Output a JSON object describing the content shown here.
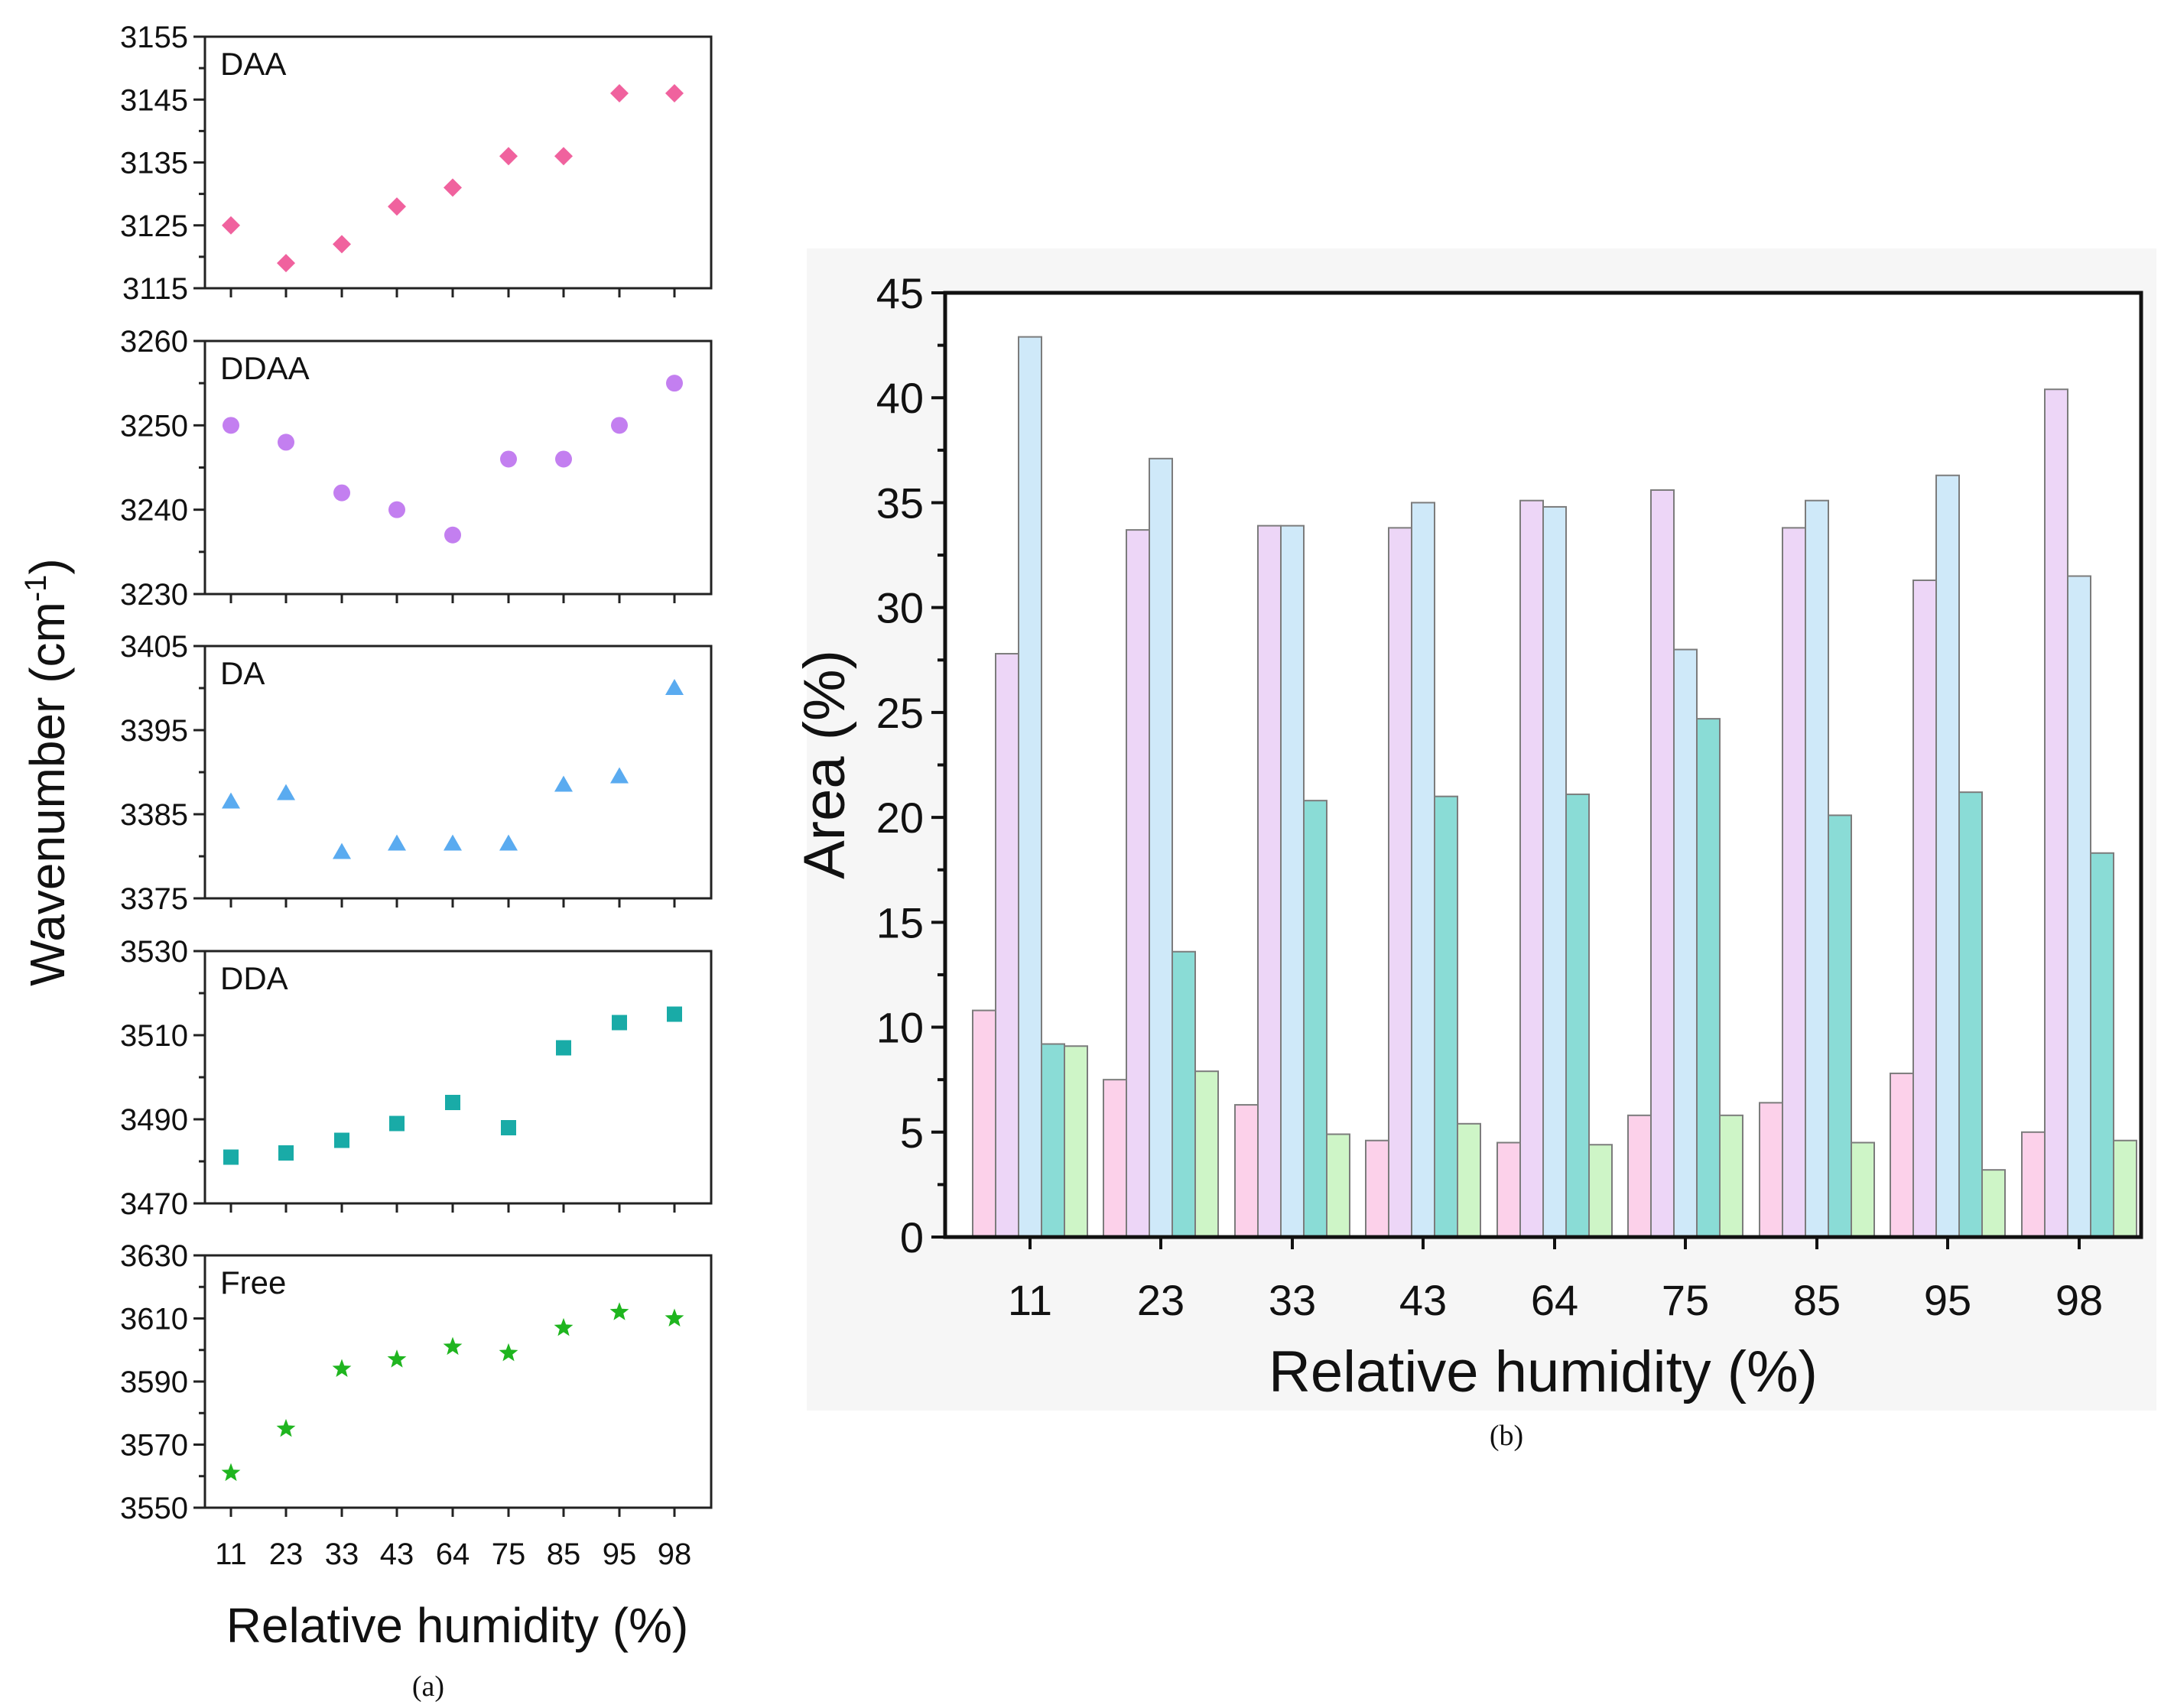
{
  "figure": {
    "caption_a": "(a)",
    "caption_b": "(b)"
  },
  "colors": {
    "DAA": "#f0629e",
    "DDAA": "#c37ff0",
    "DA": "#5aabf0",
    "DDA": "#19aba7",
    "Free": "#1fb51f",
    "bar_pink": "#fcd1ea",
    "bar_lavender": "#edd6f7",
    "bar_lightblue": "#cfe9f9",
    "bar_teal": "#8adcd6",
    "bar_lightgreen": "#cef5c7"
  },
  "chart_data": [
    {
      "id": "a",
      "type": "scatter",
      "categories": [
        "11",
        "23",
        "33",
        "43",
        "64",
        "75",
        "85",
        "95",
        "98"
      ],
      "xlabel": "Relative humidity (%)",
      "ylabel_main": "Wavenumber (cm",
      "ylabel_sup": "-1",
      "ylabel_close": ")",
      "panels": [
        {
          "name": "DAA",
          "marker": "diamond",
          "ylim": [
            3115,
            3155
          ],
          "ticks": [
            3115,
            3125,
            3135,
            3145,
            3155
          ],
          "values": [
            3125,
            3119,
            3122,
            3128,
            3131,
            3136,
            3136,
            3146,
            3146
          ]
        },
        {
          "name": "DDAA",
          "marker": "circle",
          "ylim": [
            3230,
            3260
          ],
          "ticks": [
            3230,
            3240,
            3250,
            3260
          ],
          "values": [
            3250,
            3248,
            3242,
            3240,
            3237,
            3246,
            3246,
            3250,
            3255
          ]
        },
        {
          "name": "DA",
          "marker": "triangle",
          "ylim": [
            3375,
            3405
          ],
          "ticks": [
            3375,
            3385,
            3395,
            3405
          ],
          "values": [
            3386.5,
            3387.5,
            3380.5,
            3381.5,
            3381.5,
            3381.5,
            3388.5,
            3389.5,
            3400
          ]
        },
        {
          "name": "DDA",
          "marker": "square",
          "ylim": [
            3470,
            3530
          ],
          "ticks": [
            3470,
            3490,
            3510,
            3530
          ],
          "values": [
            3481,
            3482,
            3485,
            3489,
            3494,
            3488,
            3507,
            3513,
            3515
          ]
        },
        {
          "name": "Free",
          "marker": "star",
          "ylim": [
            3550,
            3630
          ],
          "ticks": [
            3550,
            3570,
            3590,
            3610,
            3630
          ],
          "values": [
            3561,
            3575,
            3594,
            3597,
            3601,
            3599,
            3607,
            3612,
            3610
          ]
        }
      ]
    },
    {
      "id": "b",
      "type": "bar",
      "categories": [
        "11",
        "23",
        "33",
        "43",
        "64",
        "75",
        "85",
        "95",
        "98"
      ],
      "xlabel": "Relative humidity (%)",
      "ylabel": "Area (%)",
      "ylim": [
        0,
        45
      ],
      "ticks": [
        0,
        5,
        10,
        15,
        20,
        25,
        30,
        35,
        40,
        45
      ],
      "series": [
        {
          "name": "DAA",
          "color_key": "bar_pink",
          "values": [
            10.8,
            7.5,
            6.3,
            4.6,
            4.5,
            5.8,
            6.4,
            7.8,
            5.0
          ]
        },
        {
          "name": "DDAA",
          "color_key": "bar_lavender",
          "values": [
            27.8,
            33.7,
            33.9,
            33.8,
            35.1,
            35.6,
            33.8,
            31.3,
            40.4
          ]
        },
        {
          "name": "DA",
          "color_key": "bar_lightblue",
          "values": [
            42.9,
            37.1,
            33.9,
            35.0,
            34.8,
            28.0,
            35.1,
            36.3,
            31.5
          ]
        },
        {
          "name": "DDA",
          "color_key": "bar_teal",
          "values": [
            9.2,
            13.6,
            20.8,
            21.0,
            21.1,
            24.7,
            20.1,
            21.2,
            18.3
          ]
        },
        {
          "name": "Free",
          "color_key": "bar_lightgreen",
          "values": [
            9.1,
            7.9,
            4.9,
            5.4,
            4.4,
            5.8,
            4.5,
            3.2,
            4.6
          ]
        }
      ]
    }
  ]
}
